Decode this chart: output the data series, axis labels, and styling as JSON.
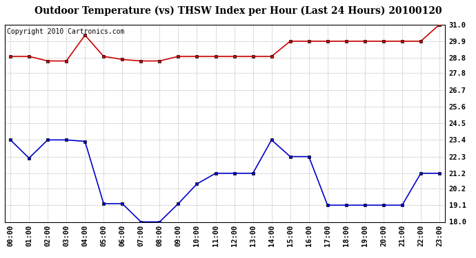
{
  "title": "Outdoor Temperature (vs) THSW Index per Hour (Last 24 Hours) 20100120",
  "copyright_text": "Copyright 2010 Cartronics.com",
  "x_labels": [
    "00:00",
    "01:00",
    "02:00",
    "03:00",
    "04:00",
    "05:00",
    "06:00",
    "07:00",
    "08:00",
    "09:00",
    "10:00",
    "11:00",
    "12:00",
    "13:00",
    "14:00",
    "15:00",
    "16:00",
    "17:00",
    "18:00",
    "19:00",
    "20:00",
    "21:00",
    "22:00",
    "23:00"
  ],
  "y_min": 18.0,
  "y_max": 31.0,
  "y_ticks": [
    18.0,
    19.1,
    20.2,
    21.2,
    22.3,
    23.4,
    24.5,
    25.6,
    26.7,
    27.8,
    28.8,
    29.9,
    31.0
  ],
  "red_data": [
    28.9,
    28.9,
    28.6,
    28.6,
    30.3,
    28.9,
    28.7,
    28.6,
    28.6,
    28.9,
    28.9,
    28.9,
    28.9,
    28.9,
    28.9,
    29.9,
    29.9,
    29.9,
    29.9,
    29.9,
    29.9,
    29.9,
    29.9,
    31.0
  ],
  "blue_data": [
    23.4,
    22.2,
    23.4,
    23.4,
    23.3,
    19.2,
    19.2,
    18.0,
    18.0,
    19.2,
    20.5,
    21.2,
    21.2,
    21.2,
    23.4,
    22.3,
    22.3,
    19.1,
    19.1,
    19.1,
    19.1,
    19.1,
    21.2,
    21.2
  ],
  "red_color": "#cc0000",
  "blue_color": "#0000cc",
  "bg_color": "#ffffff",
  "grid_color": "#bbbbbb",
  "title_fontsize": 10,
  "copyright_fontsize": 7,
  "tick_fontsize": 7.5
}
